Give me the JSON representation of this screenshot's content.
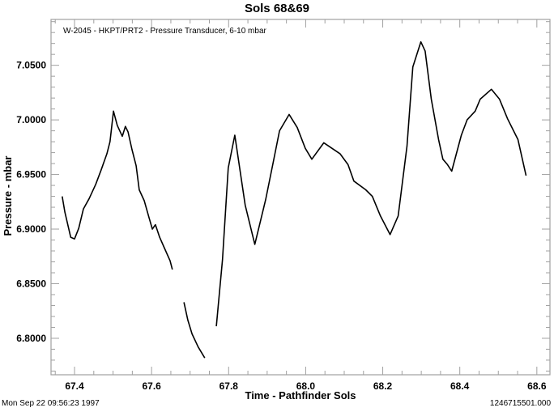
{
  "chart_data": {
    "type": "line",
    "title": "Sols 68&69",
    "subtitle": "W-2045 - HKPT/PRT2 - Pressure Transducer, 6-10 mbar",
    "xlabel": "Time - Pathfinder Sols",
    "ylabel": "Pressure - mbar",
    "xlim": [
      67.339,
      68.634
    ],
    "ylim": [
      6.7666,
      7.092
    ],
    "x_ticks": [
      67.4,
      67.6,
      67.8,
      68.0,
      68.2,
      68.4,
      68.6
    ],
    "x_tick_labels": [
      "67.4",
      "67.6",
      "67.8",
      "68.0",
      "68.2",
      "68.4",
      "68.6"
    ],
    "x_minor_step": 0.05,
    "y_ticks": [
      6.8,
      6.85,
      6.9,
      6.95,
      7.0,
      7.05
    ],
    "y_tick_labels": [
      "6.8000",
      "6.8500",
      "6.9000",
      "6.9500",
      "7.0000",
      "7.0500"
    ],
    "y_minor_step": 0.01,
    "grid": false,
    "line_color": "#000000",
    "axis_color": "#a0a0a0",
    "segments": [
      [
        [
          67.368,
          6.93
        ],
        [
          67.375,
          6.9155
        ],
        [
          67.39,
          6.8925
        ],
        [
          67.4,
          6.891
        ],
        [
          67.411,
          6.9007
        ],
        [
          67.423,
          6.9185
        ],
        [
          67.438,
          6.928
        ],
        [
          67.455,
          6.941
        ],
        [
          67.469,
          6.954
        ],
        [
          67.484,
          6.969
        ],
        [
          67.492,
          6.98
        ],
        [
          67.501,
          7.008
        ],
        [
          67.511,
          6.995
        ],
        [
          67.524,
          6.985
        ],
        [
          67.532,
          6.994
        ],
        [
          67.539,
          6.989
        ],
        [
          67.549,
          6.973
        ],
        [
          67.56,
          6.958
        ],
        [
          67.568,
          6.936
        ],
        [
          67.581,
          6.926
        ],
        [
          67.593,
          6.911
        ],
        [
          67.602,
          6.9
        ],
        [
          67.61,
          6.904
        ],
        [
          67.621,
          6.8925
        ],
        [
          67.633,
          6.883
        ],
        [
          67.648,
          6.871
        ],
        [
          67.654,
          6.863
        ]
      ],
      [
        [
          67.684,
          6.833
        ],
        [
          67.694,
          6.8167
        ],
        [
          67.705,
          6.804
        ],
        [
          67.721,
          6.792
        ],
        [
          67.738,
          6.782
        ]
      ],
      [
        [
          67.768,
          6.811
        ],
        [
          67.784,
          6.872
        ],
        [
          67.799,
          6.956
        ],
        [
          67.816,
          6.986
        ],
        [
          67.843,
          6.922
        ],
        [
          67.868,
          6.886
        ],
        [
          67.896,
          6.927
        ],
        [
          67.915,
          6.96
        ],
        [
          67.932,
          6.99
        ],
        [
          67.957,
          7.005
        ],
        [
          67.978,
          6.993
        ],
        [
          67.999,
          6.974
        ],
        [
          68.016,
          6.964
        ],
        [
          68.047,
          6.979
        ],
        [
          68.089,
          6.969
        ],
        [
          68.11,
          6.959
        ],
        [
          68.125,
          6.944
        ],
        [
          68.156,
          6.936
        ],
        [
          68.173,
          6.93
        ],
        [
          68.194,
          6.912
        ],
        [
          68.219,
          6.895
        ],
        [
          68.24,
          6.912
        ],
        [
          68.263,
          6.976
        ],
        [
          68.278,
          7.0485
        ],
        [
          68.299,
          7.0715
        ],
        [
          68.31,
          7.063
        ],
        [
          68.326,
          7.019
        ],
        [
          68.345,
          6.982
        ],
        [
          68.356,
          6.964
        ],
        [
          68.368,
          6.959
        ],
        [
          68.379,
          6.953
        ],
        [
          68.404,
          6.986
        ],
        [
          68.419,
          7.0
        ],
        [
          68.44,
          7.008
        ],
        [
          68.453,
          7.019
        ],
        [
          68.482,
          7.028
        ],
        [
          68.503,
          7.019
        ],
        [
          68.524,
          7.001
        ],
        [
          68.551,
          6.982
        ],
        [
          68.572,
          6.949
        ]
      ]
    ]
  },
  "footer": {
    "timestamp": "Mon Sep 22 09:56:23 1997",
    "id_value": "1246715501.000"
  }
}
